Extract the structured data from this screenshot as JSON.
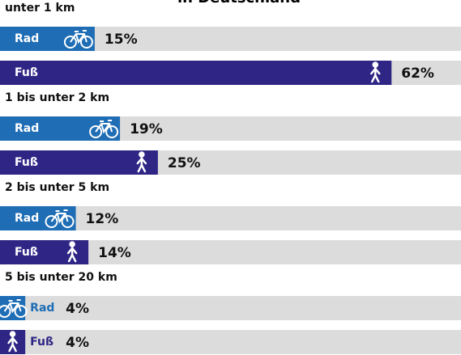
{
  "chart_data": {
    "type": "bar",
    "title": "in Deutschland",
    "categories": [
      "unter 1 km",
      "1 bis unter 2 km",
      "2 bis unter 5 km",
      "5 bis unter 20 km"
    ],
    "series": [
      {
        "name": "Rad",
        "color": "#1f6db5",
        "values": [
          15,
          19,
          12,
          4
        ],
        "value_labels": [
          "15%",
          "19%",
          "12%",
          "4%"
        ]
      },
      {
        "name": "Fuß",
        "color": "#2e2585",
        "values": [
          62,
          25,
          14,
          4
        ],
        "value_labels": [
          "62%",
          "25%",
          "14%",
          "4%"
        ]
      }
    ],
    "xlim": [
      0,
      73
    ]
  }
}
